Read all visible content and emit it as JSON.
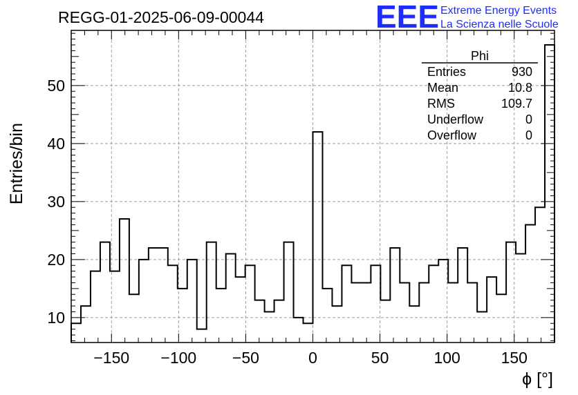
{
  "header": {
    "title": "REGG-01-2025-06-09-00044",
    "logo": "EEE",
    "logo_line1": "Extreme Energy Events",
    "logo_line2": "La Scienza nelle Scuole"
  },
  "stats": {
    "title": "Phi",
    "rows": [
      {
        "label": "Entries",
        "value": "930"
      },
      {
        "label": "Mean",
        "value": "10.8"
      },
      {
        "label": "RMS",
        "value": "109.7"
      },
      {
        "label": "Underflow",
        "value": "0"
      },
      {
        "label": "Overflow",
        "value": "0"
      }
    ]
  },
  "colors": {
    "line": "#000000",
    "grid": "#9a9a9a",
    "logo": "#1f2cff"
  },
  "chart_data": {
    "type": "bar",
    "histogram": true,
    "xlabel": "ϕ [°]",
    "ylabel": "Entries/bin",
    "xlim": [
      -180,
      180
    ],
    "ylim": [
      5.7,
      59.5
    ],
    "grid": true,
    "xticks": [
      -150,
      -100,
      -50,
      0,
      50,
      100,
      150
    ],
    "xtick_labels": [
      "−150",
      "−100",
      "−50",
      "0",
      "50",
      "100",
      "150"
    ],
    "yticks": [
      10,
      20,
      30,
      40,
      50
    ],
    "ytick_labels": [
      "10",
      "20",
      "30",
      "40",
      "50"
    ],
    "bin_edges_start": -180,
    "bin_width": 7.2,
    "values": [
      9,
      12,
      18,
      23,
      18,
      27,
      14,
      20,
      22,
      22,
      19,
      15,
      20,
      8,
      23,
      15,
      21,
      17,
      19,
      13,
      11,
      13,
      23,
      10,
      9,
      42,
      15,
      12,
      19,
      16,
      16,
      19,
      13,
      22,
      16,
      12,
      16,
      19,
      20,
      16,
      22,
      16,
      11,
      17,
      14,
      23,
      21,
      26,
      29,
      57
    ]
  }
}
